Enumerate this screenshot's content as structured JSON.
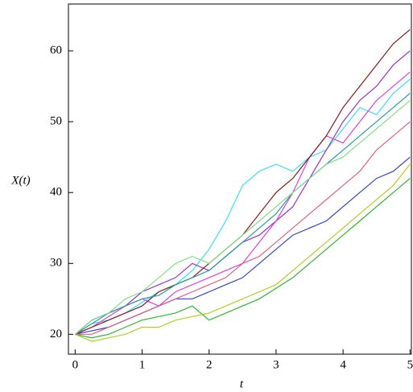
{
  "chart_data": {
    "type": "line",
    "x_label": "t",
    "y_label": "X(t)",
    "xlim": [
      -0.1,
      5.02
    ],
    "ylim": [
      17.2,
      66.6
    ],
    "xticks": [
      0,
      1,
      2,
      3,
      4,
      5
    ],
    "yticks": [
      20,
      30,
      40,
      50,
      60
    ],
    "x": [
      0,
      0.25,
      0.5,
      0.75,
      1,
      1.25,
      1.5,
      1.75,
      2,
      2.25,
      2.5,
      2.75,
      3,
      3.25,
      3.5,
      3.75,
      4,
      4.25,
      4.5,
      4.75,
      5
    ],
    "series": [
      {
        "color": "#33e0ff",
        "values": [
          20,
          21.5,
          22,
          23,
          24.5,
          26,
          27,
          29,
          32,
          36,
          41,
          43,
          44,
          43,
          45,
          46,
          49,
          52,
          51,
          54,
          56
        ]
      },
      {
        "color": "#2db82d",
        "values": [
          20,
          19.5,
          20,
          21,
          22,
          22.5,
          23,
          24,
          22,
          23,
          24,
          25,
          26.5,
          28,
          30,
          32,
          34,
          36,
          38,
          40,
          42
        ]
      },
      {
        "color": "#9933cc",
        "values": [
          20,
          22,
          23,
          24,
          26,
          27,
          28,
          30,
          29,
          31,
          33,
          34,
          36,
          38,
          42,
          46,
          50,
          53,
          55,
          58,
          60
        ]
      },
      {
        "color": "#e040e0",
        "values": [
          20,
          21,
          22.5,
          24,
          25,
          24,
          26,
          27,
          28,
          29,
          30,
          33,
          36,
          40,
          45,
          48,
          47,
          50,
          53,
          55,
          57
        ]
      },
      {
        "color": "#3344cc",
        "values": [
          20,
          20.5,
          21,
          22,
          23,
          24,
          25,
          25,
          26,
          27,
          28,
          30,
          32,
          34,
          35,
          36,
          38,
          40,
          42,
          43,
          45
        ]
      },
      {
        "color": "#b0d020",
        "values": [
          20,
          19,
          19.5,
          20,
          21,
          21,
          22,
          22.5,
          23,
          24,
          25,
          26,
          27,
          29,
          31,
          33,
          35,
          37,
          39,
          41,
          44
        ]
      },
      {
        "color": "#8b1a1a",
        "values": [
          20,
          21,
          22,
          23,
          24,
          26,
          27,
          28,
          30,
          32,
          34,
          37,
          40,
          42,
          45,
          48,
          52,
          55,
          58,
          61,
          63
        ]
      },
      {
        "color": "#20a0a0",
        "values": [
          20,
          21.5,
          23,
          24,
          25,
          25.5,
          27,
          28,
          29,
          31,
          33,
          35,
          37,
          40,
          42,
          44,
          46,
          48,
          50,
          52,
          54
        ]
      },
      {
        "color": "#e06080",
        "values": [
          20,
          20,
          21,
          22,
          23,
          24,
          25,
          26,
          27,
          28,
          30,
          31,
          33,
          35,
          37,
          39,
          41,
          43,
          46,
          48,
          50
        ]
      },
      {
        "color": "#80e080",
        "values": [
          20,
          22,
          23,
          25,
          26,
          28,
          30,
          31,
          30,
          32,
          34,
          36,
          38,
          40,
          42,
          44,
          45,
          47,
          49,
          51,
          53
        ]
      }
    ]
  }
}
